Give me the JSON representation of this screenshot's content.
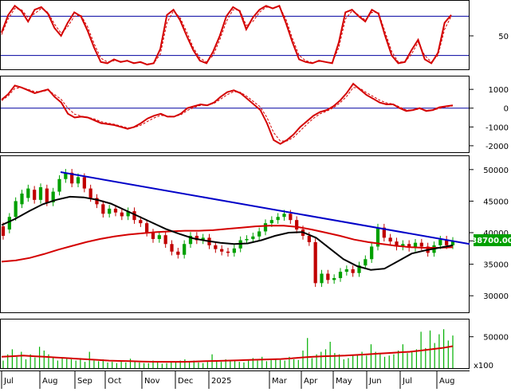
{
  "colors": {
    "up": "#00a000",
    "down": "#c00000",
    "ma_short": "#000000",
    "ma_long": "#d40000",
    "trendline": "#0000c8",
    "osc_ref": "#0000a0",
    "volume": "#00b000",
    "volume_avg": "#d40000",
    "badge_bg": "#00a000"
  },
  "chart_data": [
    {
      "type": "line",
      "name": "stochastic-panel",
      "y_ticks": [
        "50"
      ],
      "ylim": [
        0,
        100
      ],
      "reference_levels": [
        80,
        20
      ],
      "series": [
        {
          "key": "main",
          "values": [
            55,
            82,
            96,
            88,
            72,
            90,
            94,
            84,
            62,
            50,
            70,
            86,
            80,
            58,
            32,
            10,
            8,
            14,
            10,
            12,
            8,
            10,
            6,
            8,
            30,
            82,
            90,
            74,
            50,
            28,
            12,
            8,
            26,
            50,
            80,
            94,
            88,
            60,
            78,
            90,
            96,
            92,
            96,
            70,
            40,
            14,
            10,
            8,
            12,
            10,
            8,
            40,
            86,
            90,
            80,
            72,
            90,
            84,
            50,
            20,
            8,
            10,
            28,
            44,
            14,
            8,
            24,
            70,
            82
          ]
        },
        {
          "key": "signal",
          "values": [
            52,
            76,
            92,
            90,
            78,
            84,
            92,
            86,
            68,
            54,
            64,
            80,
            82,
            64,
            38,
            16,
            10,
            12,
            11,
            11,
            9,
            9,
            7,
            8,
            22,
            70,
            88,
            78,
            56,
            32,
            16,
            10,
            20,
            44,
            72,
            90,
            90,
            66,
            72,
            86,
            94,
            93,
            95,
            76,
            46,
            20,
            12,
            9,
            11,
            10,
            9,
            32,
            76,
            88,
            82,
            74,
            86,
            86,
            56,
            26,
            10,
            10,
            22,
            40,
            20,
            10,
            20,
            60,
            80
          ]
        }
      ]
    },
    {
      "type": "line",
      "name": "macd-panel",
      "y_ticks": [
        "1000",
        "0",
        "-1000",
        "-2000"
      ],
      "ylim": [
        -2300,
        1600
      ],
      "reference_levels": [
        0
      ],
      "series": [
        {
          "key": "main",
          "values": [
            450,
            750,
            1200,
            1100,
            950,
            800,
            900,
            1000,
            600,
            300,
            -300,
            -500,
            -450,
            -500,
            -650,
            -800,
            -850,
            -900,
            -1000,
            -1100,
            -1000,
            -800,
            -550,
            -400,
            -300,
            -450,
            -450,
            -300,
            0,
            100,
            200,
            150,
            300,
            600,
            850,
            950,
            800,
            500,
            200,
            -100,
            -800,
            -1700,
            -1900,
            -1700,
            -1400,
            -1000,
            -700,
            -400,
            -200,
            -100,
            100,
            400,
            800,
            1300,
            1000,
            700,
            500,
            300,
            200,
            200,
            0,
            -150,
            -100,
            0,
            -150,
            -100,
            50,
            100,
            150
          ]
        },
        {
          "key": "signal",
          "values": [
            400,
            650,
            1050,
            1100,
            1000,
            880,
            880,
            950,
            720,
            460,
            0,
            -320,
            -420,
            -480,
            -580,
            -720,
            -800,
            -860,
            -950,
            -1050,
            -1030,
            -900,
            -700,
            -520,
            -380,
            -420,
            -440,
            -360,
            -120,
            40,
            150,
            160,
            250,
            480,
            720,
            880,
            840,
            620,
            340,
            60,
            -500,
            -1300,
            -1750,
            -1750,
            -1550,
            -1200,
            -860,
            -540,
            -300,
            -160,
            20,
            280,
            620,
            1100,
            1060,
            820,
            620,
            420,
            280,
            220,
            60,
            -100,
            -110,
            -40,
            -110,
            -110,
            -10,
            70,
            120
          ]
        }
      ]
    },
    {
      "type": "candlestick",
      "name": "price-panel",
      "y_ticks": [
        "50000",
        "45000",
        "40000",
        "35000",
        "30000"
      ],
      "ylim": [
        27500,
        52000
      ],
      "last_price_label": "38700.00",
      "candles": [
        [
          41000,
          39500
        ],
        [
          40500,
          42500
        ],
        [
          42500,
          45000
        ],
        [
          44500,
          46200
        ],
        [
          45500,
          47000
        ],
        [
          46800,
          45200
        ],
        [
          45200,
          47200
        ],
        [
          47000,
          44800
        ],
        [
          44800,
          46500
        ],
        [
          46500,
          48500
        ],
        [
          48500,
          49500
        ],
        [
          49500,
          47800
        ],
        [
          47800,
          48800
        ],
        [
          48800,
          47000
        ],
        [
          47000,
          45500
        ],
        [
          45500,
          44500
        ],
        [
          44500,
          43000
        ],
        [
          43000,
          43800
        ],
        [
          43800,
          43200
        ],
        [
          43200,
          42600
        ],
        [
          42600,
          43400
        ],
        [
          43400,
          42000
        ],
        [
          42000,
          41500
        ],
        [
          41500,
          40000
        ],
        [
          40000,
          39000
        ],
        [
          39000,
          39600
        ],
        [
          39600,
          38200
        ],
        [
          38200,
          37000
        ],
        [
          37000,
          36500
        ],
        [
          36500,
          38200
        ],
        [
          38200,
          39500
        ],
        [
          39500,
          38800
        ],
        [
          38800,
          39200
        ],
        [
          39200,
          38000
        ],
        [
          38000,
          37400
        ],
        [
          37400,
          37000
        ],
        [
          37000,
          36800
        ],
        [
          36800,
          37500
        ],
        [
          37500,
          38800
        ],
        [
          38800,
          39000
        ],
        [
          39000,
          39400
        ],
        [
          39400,
          40200
        ],
        [
          40200,
          41500
        ],
        [
          41500,
          42000
        ],
        [
          42000,
          42500
        ],
        [
          42500,
          43000
        ],
        [
          43000,
          42000
        ],
        [
          42000,
          40500
        ],
        [
          40500,
          39500
        ],
        [
          39500,
          38500
        ],
        [
          38500,
          32000
        ],
        [
          32000,
          33500
        ],
        [
          33500,
          32500
        ],
        [
          32500,
          32800
        ],
        [
          32800,
          33800
        ],
        [
          33800,
          34200
        ],
        [
          34200,
          33600
        ],
        [
          33600,
          34800
        ],
        [
          34800,
          35800
        ],
        [
          35800,
          37800
        ],
        [
          37800,
          40800
        ],
        [
          40800,
          39200
        ],
        [
          39200,
          38600
        ],
        [
          38600,
          37800
        ],
        [
          37800,
          38200
        ],
        [
          38200,
          37600
        ],
        [
          37600,
          38400
        ],
        [
          38400,
          37800
        ],
        [
          37800,
          36800
        ],
        [
          36800,
          38000
        ],
        [
          38000,
          38900
        ],
        [
          38900,
          38000
        ],
        [
          38000,
          38700
        ]
      ],
      "series": [
        {
          "key": "ma_short",
          "values": [
            41200,
            42200,
            43400,
            44500,
            45200,
            45700,
            45600,
            45200,
            44600,
            43600,
            42600,
            41600,
            40600,
            39800,
            39100,
            38700,
            38400,
            38200,
            38300,
            38800,
            39500,
            40000,
            40100,
            39200,
            37500,
            35800,
            34700,
            34100,
            34300,
            35500,
            36700,
            37200,
            37600,
            38000
          ]
        },
        {
          "key": "ma_long",
          "values": [
            35400,
            35600,
            36000,
            36600,
            37300,
            37900,
            38500,
            39000,
            39400,
            39700,
            39900,
            40100,
            40200,
            40300,
            40300,
            40400,
            40600,
            40800,
            41000,
            41100,
            41100,
            40900,
            40500,
            40000,
            39500,
            38900,
            38500,
            38200,
            37900,
            37700,
            37600,
            37600,
            37700
          ]
        },
        {
          "key": "trendline",
          "values": [
            49600,
            38200
          ]
        }
      ]
    },
    {
      "type": "bar",
      "name": "volume-panel",
      "y_ticks": [
        "50000"
      ],
      "unit_label": "x100",
      "ylim": [
        0,
        75000
      ],
      "values": [
        12000,
        22000,
        30000,
        18000,
        26000,
        14000,
        22000,
        17000,
        34000,
        28000,
        22000,
        18000,
        12000,
        16000,
        15000,
        14000,
        12000,
        16000,
        10000,
        26000,
        12000,
        11000,
        14000,
        9000,
        10000,
        8000,
        12000,
        9000,
        15000,
        11000,
        9000,
        8000,
        8000,
        12000,
        10000,
        7000,
        8000,
        10000,
        9000,
        12000,
        14000,
        11000,
        12000,
        9000,
        8000,
        10000,
        22000,
        12000,
        10000,
        14000,
        11000,
        12000,
        10000,
        9000,
        14000,
        16000,
        12000,
        18000,
        11000,
        13000,
        14000,
        13000,
        12000,
        18000,
        14000,
        13000,
        28000,
        48000,
        16000,
        22000,
        26000,
        30000,
        42000,
        24000,
        22000,
        14000,
        16000,
        20000,
        22000,
        26000,
        20000,
        38000,
        26000,
        24000,
        18000,
        20000,
        22000,
        28000,
        38000,
        24000,
        26000,
        30000,
        58000,
        32000,
        60000,
        40000,
        54000,
        62000,
        44000,
        52000
      ],
      "avg_values": [
        18000,
        19000,
        20000,
        19000,
        18000,
        17000,
        16000,
        15000,
        14000,
        13000,
        12000,
        11500,
        11000,
        10500,
        10200,
        10000,
        10000,
        10000,
        10500,
        11000,
        11500,
        12000,
        12500,
        13000,
        13500,
        14000,
        14500,
        15500,
        17000,
        18000,
        19000,
        19500,
        20000,
        21000,
        22000,
        23000,
        24000,
        25000,
        26000,
        28000,
        30000,
        32000,
        35000
      ]
    }
  ],
  "x_axis": {
    "labels": [
      "Jul",
      "Aug",
      "Sep",
      "Oct",
      "Nov",
      "Dec",
      "2025",
      "Mar",
      "Apr",
      "May",
      "Jun",
      "Jul",
      "Aug"
    ]
  }
}
